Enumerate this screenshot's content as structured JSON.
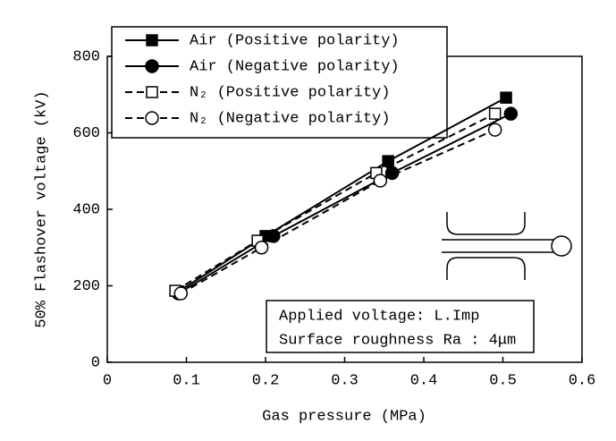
{
  "chart_data": {
    "type": "line",
    "x_label": "Gas pressure (MPa)",
    "y_label": "50% Flashover voltage (kV)",
    "xlim": [
      0,
      0.6
    ],
    "xticks": [
      0,
      0.1,
      0.2,
      0.3,
      0.4,
      0.5,
      0.6
    ],
    "ylim": [
      0,
      800
    ],
    "yticks": [
      0,
      200,
      400,
      600,
      800
    ],
    "series": [
      {
        "name": "Air (Positive polarity)",
        "color": "#000000",
        "marker": "square",
        "filled": true,
        "line_style": "solid",
        "x": [
          0.09,
          0.2,
          0.355,
          0.504
        ],
        "values": [
          185,
          330,
          526,
          692
        ]
      },
      {
        "name": "Air (Negative polarity)",
        "color": "#000000",
        "marker": "circle",
        "filled": true,
        "line_style": "solid",
        "x": [
          0.09,
          0.21,
          0.36,
          0.51
        ],
        "values": [
          180,
          330,
          495,
          650
        ]
      },
      {
        "name": "N₂ (Positive polarity)",
        "color": "#000000",
        "marker": "square",
        "filled": false,
        "line_style": "dashed",
        "x": [
          0.086,
          0.19,
          0.34,
          0.49
        ],
        "values": [
          187,
          318,
          495,
          650
        ]
      },
      {
        "name": "N₂ (Negative polarity)",
        "color": "#000000",
        "marker": "circle",
        "filled": false,
        "line_style": "dashed",
        "x": [
          0.093,
          0.195,
          0.345,
          0.49
        ],
        "values": [
          180,
          300,
          475,
          608
        ]
      }
    ],
    "annotations": [
      "Applied voltage: L.Imp",
      "Surface roughness Ra : 4μm"
    ]
  }
}
